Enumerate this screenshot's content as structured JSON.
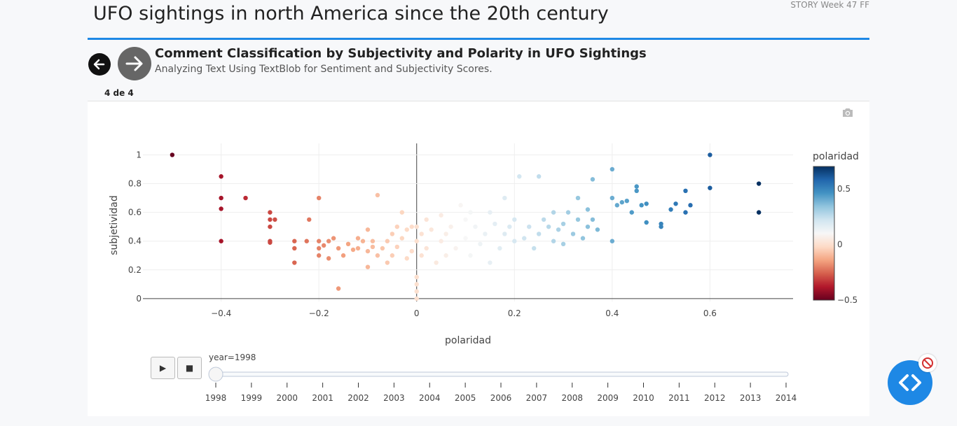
{
  "page": {
    "title": "UFO sightings in north America since the 20th century",
    "story_label": "STORY Week 47 FF",
    "accent_color": "#1e88e5"
  },
  "slide": {
    "title": "Comment Classification by Subjectivity and Polarity in UFO Sightings",
    "subtitle": "Analyzing Text Using TextBlob for Sentiment and Subjectivity Scores.",
    "counter": "4 de 4",
    "prev_icon": "arrow-left-icon",
    "next_icon": "arrow-right-icon"
  },
  "toolbar": {
    "camera_icon": "camera-icon"
  },
  "animation": {
    "play_icon": "play-icon",
    "play_label": "▶",
    "stop_icon": "stop-icon",
    "stop_label": "■",
    "current_label": "year=1998",
    "current_year": 1998,
    "years": [
      "1998",
      "1999",
      "2000",
      "2001",
      "2002",
      "2003",
      "2004",
      "2005",
      "2006",
      "2007",
      "2008",
      "2009",
      "2010",
      "2011",
      "2012",
      "2013",
      "2014"
    ]
  },
  "fab": {
    "icon": "code-icon",
    "badge_icon": "block-icon"
  },
  "chart_data": {
    "type": "scatter",
    "xlabel": "polaridad",
    "ylabel": "subjetividad",
    "xlim": [
      -0.56,
      0.77
    ],
    "ylim": [
      -0.02,
      1.08
    ],
    "xticks": [
      -0.4,
      -0.2,
      0,
      0.2,
      0.4,
      0.6
    ],
    "xtick_labels": [
      "−0.4",
      "−0.2",
      "0",
      "0.2",
      "0.4",
      "0.6"
    ],
    "yticks": [
      0,
      0.2,
      0.4,
      0.6,
      0.8,
      1
    ],
    "ytick_labels": [
      "0",
      "0.2",
      "0.4",
      "0.6",
      "0.8",
      "1"
    ],
    "grid": true,
    "colorscale": "RdBu",
    "colorbar": {
      "title": "polaridad",
      "range": [
        -0.5,
        0.7
      ],
      "ticks": [
        0.5,
        0,
        -0.5
      ],
      "tick_labels": [
        "0.5",
        "0",
        "−0.5"
      ]
    },
    "points": [
      [
        -0.5,
        1.0
      ],
      [
        -0.4,
        0.85
      ],
      [
        -0.4,
        0.7
      ],
      [
        -0.4,
        0.625
      ],
      [
        -0.4,
        0.4
      ],
      [
        -0.35,
        0.7
      ],
      [
        -0.3,
        0.6
      ],
      [
        -0.3,
        0.55
      ],
      [
        -0.3,
        0.5
      ],
      [
        -0.29,
        0.55
      ],
      [
        -0.3,
        0.4
      ],
      [
        -0.3,
        0.39
      ],
      [
        -0.25,
        0.4
      ],
      [
        -0.25,
        0.35
      ],
      [
        -0.25,
        0.25
      ],
      [
        -0.225,
        0.4
      ],
      [
        -0.22,
        0.55
      ],
      [
        -0.2,
        0.7
      ],
      [
        -0.2,
        0.4
      ],
      [
        -0.2,
        0.35
      ],
      [
        -0.2,
        0.3
      ],
      [
        -0.19,
        0.37
      ],
      [
        -0.18,
        0.4
      ],
      [
        -0.18,
        0.28
      ],
      [
        -0.17,
        0.42
      ],
      [
        -0.16,
        0.35
      ],
      [
        -0.16,
        0.07
      ],
      [
        -0.15,
        0.3
      ],
      [
        -0.14,
        0.38
      ],
      [
        -0.13,
        0.34
      ],
      [
        -0.12,
        0.35
      ],
      [
        -0.12,
        0.42
      ],
      [
        -0.11,
        0.4
      ],
      [
        -0.1,
        0.22
      ],
      [
        -0.1,
        0.48
      ],
      [
        -0.1,
        0.33
      ],
      [
        -0.09,
        0.36
      ],
      [
        -0.09,
        0.4
      ],
      [
        -0.08,
        0.72
      ],
      [
        -0.08,
        0.3
      ],
      [
        -0.07,
        0.35
      ],
      [
        -0.06,
        0.4
      ],
      [
        -0.06,
        0.25
      ],
      [
        -0.05,
        0.45
      ],
      [
        -0.05,
        0.3
      ],
      [
        -0.04,
        0.5
      ],
      [
        -0.04,
        0.36
      ],
      [
        -0.03,
        0.6
      ],
      [
        -0.03,
        0.42
      ],
      [
        -0.02,
        0.28
      ],
      [
        -0.02,
        0.48
      ],
      [
        -0.01,
        0.33
      ],
      [
        -0.01,
        0.5
      ],
      [
        0.0,
        0.4
      ],
      [
        0.0,
        0.0
      ],
      [
        0.0,
        0.05
      ],
      [
        0.0,
        0.1
      ],
      [
        0.0,
        0.15
      ],
      [
        0.0,
        0.5
      ],
      [
        0.01,
        0.3
      ],
      [
        0.01,
        0.45
      ],
      [
        0.02,
        0.35
      ],
      [
        0.02,
        0.55
      ],
      [
        0.03,
        0.48
      ],
      [
        0.04,
        0.25
      ],
      [
        0.05,
        0.4
      ],
      [
        0.05,
        0.58
      ],
      [
        0.06,
        0.3
      ],
      [
        0.06,
        0.45
      ],
      [
        0.07,
        0.5
      ],
      [
        0.08,
        0.35
      ],
      [
        0.09,
        0.65
      ],
      [
        0.1,
        0.42
      ],
      [
        0.1,
        0.55
      ],
      [
        0.11,
        0.6
      ],
      [
        0.11,
        0.3
      ],
      [
        0.12,
        0.5
      ],
      [
        0.13,
        0.38
      ],
      [
        0.14,
        0.45
      ],
      [
        0.15,
        0.6
      ],
      [
        0.15,
        0.25
      ],
      [
        0.16,
        0.52
      ],
      [
        0.17,
        0.35
      ],
      [
        0.18,
        0.7
      ],
      [
        0.18,
        0.45
      ],
      [
        0.19,
        0.5
      ],
      [
        0.2,
        0.4
      ],
      [
        0.2,
        0.55
      ],
      [
        0.21,
        0.85
      ],
      [
        0.22,
        0.42
      ],
      [
        0.23,
        0.5
      ],
      [
        0.24,
        0.35
      ],
      [
        0.25,
        0.45
      ],
      [
        0.25,
        0.85
      ],
      [
        0.26,
        0.55
      ],
      [
        0.27,
        0.5
      ],
      [
        0.28,
        0.4
      ],
      [
        0.28,
        0.6
      ],
      [
        0.29,
        0.48
      ],
      [
        0.3,
        0.52
      ],
      [
        0.3,
        0.38
      ],
      [
        0.31,
        0.6
      ],
      [
        0.32,
        0.45
      ],
      [
        0.33,
        0.55
      ],
      [
        0.33,
        0.7
      ],
      [
        0.34,
        0.42
      ],
      [
        0.35,
        0.5
      ],
      [
        0.35,
        0.62
      ],
      [
        0.36,
        0.55
      ],
      [
        0.36,
        0.83
      ],
      [
        0.37,
        0.48
      ],
      [
        0.4,
        0.9
      ],
      [
        0.4,
        0.4
      ],
      [
        0.4,
        0.7
      ],
      [
        0.41,
        0.65
      ],
      [
        0.42,
        0.67
      ],
      [
        0.43,
        0.68
      ],
      [
        0.44,
        0.6
      ],
      [
        0.45,
        0.78
      ],
      [
        0.45,
        0.75
      ],
      [
        0.46,
        0.65
      ],
      [
        0.47,
        0.66
      ],
      [
        0.47,
        0.53
      ],
      [
        0.5,
        0.52
      ],
      [
        0.5,
        0.5
      ],
      [
        0.52,
        0.62
      ],
      [
        0.53,
        0.66
      ],
      [
        0.55,
        0.75
      ],
      [
        0.55,
        0.6
      ],
      [
        0.56,
        0.65
      ],
      [
        0.6,
        1.0
      ],
      [
        0.6,
        0.77
      ],
      [
        0.7,
        0.8
      ],
      [
        0.7,
        0.6
      ]
    ]
  }
}
